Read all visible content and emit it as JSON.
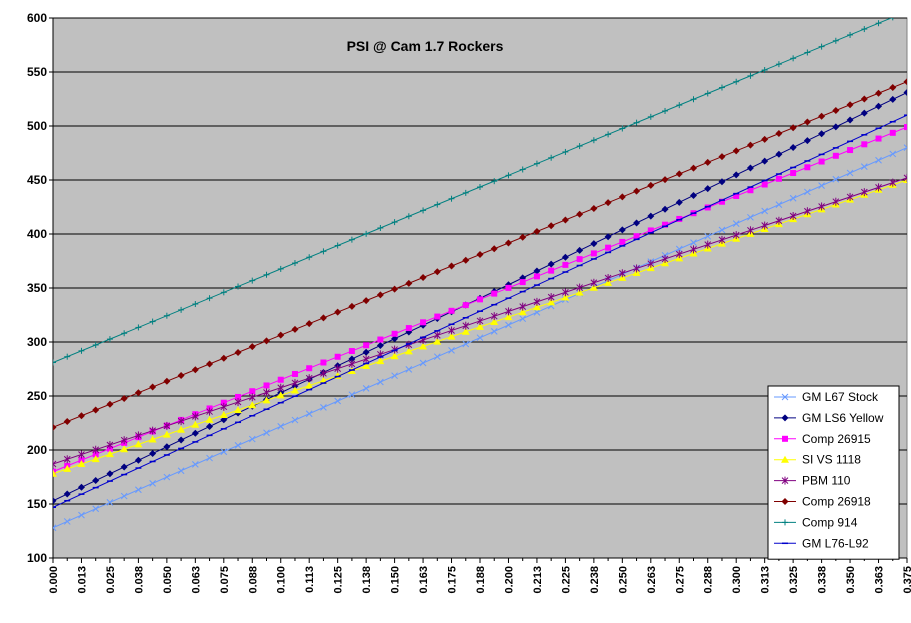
{
  "chart_data": {
    "type": "line",
    "title": "PSI @ Cam 1.7 Rockers",
    "xlabel": "",
    "ylabel": "",
    "x_range": [
      0,
      0.375
    ],
    "x_step": 0.00625,
    "x_tick_labels": [
      "0.000",
      "0.013",
      "0.025",
      "0.038",
      "0.050",
      "0.063",
      "0.075",
      "0.088",
      "0.100",
      "0.113",
      "0.125",
      "0.138",
      "0.150",
      "0.163",
      "0.175",
      "0.188",
      "0.200",
      "0.213",
      "0.225",
      "0.238",
      "0.250",
      "0.263",
      "0.275",
      "0.288",
      "0.300",
      "0.313",
      "0.325",
      "0.338",
      "0.350",
      "0.363",
      "0.375"
    ],
    "ylim": [
      100,
      600
    ],
    "y_ticks": [
      100,
      150,
      200,
      250,
      300,
      350,
      400,
      450,
      500,
      550,
      600
    ],
    "grid": "horizontal",
    "legend_position": "bottom-right",
    "series": [
      {
        "name": "GM L67 Stock",
        "color": "#6699FF",
        "marker": "x",
        "segments": [
          [
            0,
            128
          ],
          [
            0.375,
            480
          ]
        ]
      },
      {
        "name": "GM LS6 Yellow",
        "color": "#000080",
        "marker": "diamond",
        "segments": [
          [
            0,
            153
          ],
          [
            0.2,
            353
          ],
          [
            0.375,
            531
          ]
        ]
      },
      {
        "name": "Comp 26915",
        "color": "#FF00FF",
        "marker": "square",
        "segments": [
          [
            0,
            180
          ],
          [
            0.375,
            499
          ]
        ]
      },
      {
        "name": "SI VS 1118",
        "color": "#FFFF00",
        "marker": "triangle",
        "segments": [
          [
            0,
            178
          ],
          [
            0.375,
            450
          ]
        ]
      },
      {
        "name": "PBM 110",
        "color": "#800080",
        "marker": "star",
        "segments": [
          [
            0,
            187
          ],
          [
            0.375,
            452
          ]
        ]
      },
      {
        "name": "Comp 26918",
        "color": "#800000",
        "marker": "diamond",
        "segments": [
          [
            0,
            221
          ],
          [
            0.375,
            541
          ]
        ]
      },
      {
        "name": "Comp 914",
        "color": "#008080",
        "marker": "plus",
        "segments": [
          [
            0,
            281
          ],
          [
            0.375,
            606
          ]
        ]
      },
      {
        "name": "GM L76-L92",
        "color": "#0000CC",
        "marker": "dash",
        "segments": [
          [
            0,
            147
          ],
          [
            0.375,
            510
          ]
        ]
      }
    ]
  }
}
